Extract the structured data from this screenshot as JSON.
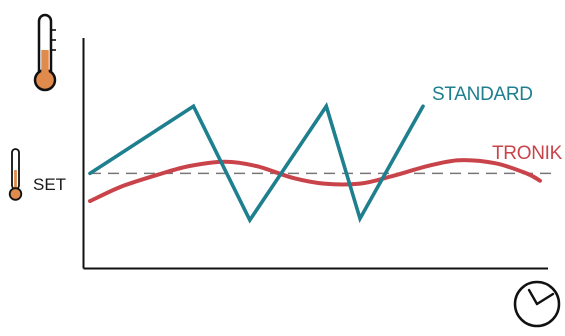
{
  "colors": {
    "standard": "#1e7f8e",
    "tronik": "#c9444a",
    "thermo_fill": "#e08a4c",
    "axis": "#111111",
    "setpoint": "#777777"
  },
  "icons": {
    "top": "thermometer-icon",
    "set": "thermometer-small-icon",
    "time": "clock-icon"
  },
  "labels": {
    "set": "SET"
  },
  "chart_data": {
    "type": "line",
    "title": "",
    "xlabel": "",
    "ylabel": "",
    "xlim": [
      0,
      100
    ],
    "ylim": [
      0,
      100
    ],
    "grid": false,
    "legend": "inline labels at line ends",
    "setpoint": 47,
    "series": [
      {
        "name": "STANDARD",
        "x": [
          0,
          23,
          35.5,
          52.5,
          60,
          74
        ],
        "y": [
          47,
          93,
          15,
          93,
          16,
          93
        ]
      },
      {
        "name": "TRONIK",
        "x": [
          0,
          7,
          15,
          22,
          30,
          37,
          45,
          52,
          60,
          67,
          75,
          82,
          90,
          97,
          100
        ],
        "y": [
          28,
          38,
          46,
          52,
          55,
          52,
          44,
          40,
          40,
          45,
          52,
          56,
          54,
          47,
          42
        ]
      }
    ]
  }
}
